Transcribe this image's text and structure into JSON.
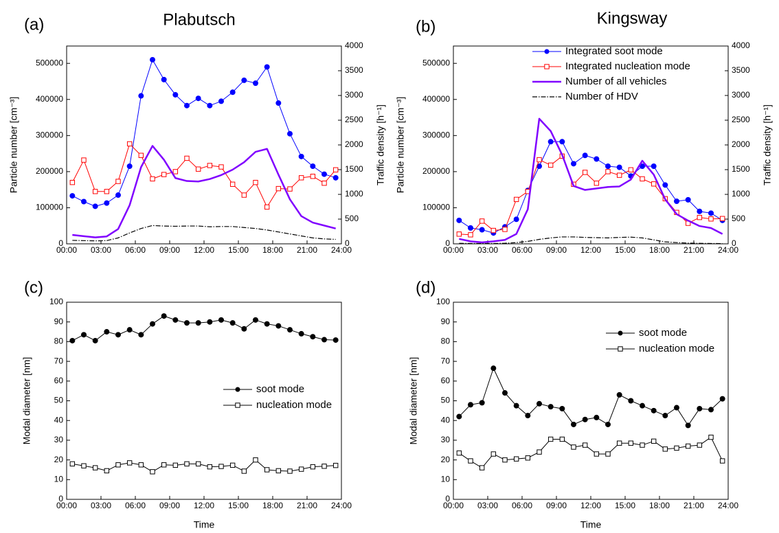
{
  "chart_data": [
    {
      "type": "line",
      "panel_label": "(a)",
      "title": "Plabutsch",
      "y_label": "Particle number [cm⁻³]",
      "y2_label": "Traffic density [h⁻¹]",
      "legend": "none",
      "x": [
        0.5,
        1.5,
        2.5,
        3.5,
        4.5,
        5.5,
        6.5,
        7.5,
        8.5,
        9.5,
        10.5,
        11.5,
        12.5,
        13.5,
        14.5,
        15.5,
        16.5,
        17.5,
        18.5,
        19.5,
        20.5,
        21.5,
        22.5,
        23.5
      ],
      "xlim": [
        0,
        24
      ],
      "xticks": [
        {
          "value": 0,
          "label": "00:00"
        },
        {
          "value": 3,
          "label": "03:00"
        },
        {
          "value": 6,
          "label": "06:00"
        },
        {
          "value": 9,
          "label": "09:00"
        },
        {
          "value": 12,
          "label": "12:00"
        },
        {
          "value": 15,
          "label": "15:00"
        },
        {
          "value": 18,
          "label": "18:00"
        },
        {
          "value": 21,
          "label": "21:00"
        },
        {
          "value": 24,
          "label": "24:00"
        }
      ],
      "ylim": [
        0,
        548000
      ],
      "yticks": [
        0,
        100000,
        200000,
        300000,
        400000,
        500000
      ],
      "y2lim": [
        0,
        4000
      ],
      "y2ticks": [
        0,
        500,
        1000,
        1500,
        2000,
        2500,
        3000,
        3500,
        4000
      ],
      "series": [
        {
          "name": "Integrated soot mode",
          "color": "#0000ff",
          "marker": "circle-filled",
          "linestyle": "solid",
          "linewidth": 1,
          "axis": "y",
          "values": [
            133000,
            117000,
            104000,
            113000,
            135000,
            215000,
            410000,
            510000,
            455000,
            413000,
            383000,
            403000,
            383000,
            395000,
            420000,
            453000,
            445000,
            490000,
            390000,
            305000,
            242000,
            215000,
            193000,
            183000
          ]
        },
        {
          "name": "Integrated nucleation mode",
          "color": "#ff0000",
          "marker": "square-open",
          "linestyle": "solid",
          "linewidth": 1,
          "axis": "y",
          "values": [
            170000,
            232000,
            145000,
            145000,
            173000,
            277000,
            245000,
            180000,
            192000,
            200000,
            237000,
            207000,
            217000,
            213000,
            165000,
            135000,
            170000,
            102000,
            153000,
            152000,
            183000,
            187000,
            168000,
            205000
          ]
        },
        {
          "name": "Number of all vehicles",
          "color": "#8000ff",
          "marker": "none",
          "linestyle": "solid",
          "linewidth": 2.5,
          "axis": "y2",
          "values": [
            180,
            155,
            130,
            150,
            300,
            780,
            1550,
            1980,
            1700,
            1330,
            1270,
            1260,
            1310,
            1390,
            1500,
            1650,
            1860,
            1920,
            1400,
            900,
            560,
            430,
            370,
            310
          ]
        },
        {
          "name": "Number of HDV",
          "color": "#000000",
          "marker": "none",
          "linestyle": "dashdot",
          "linewidth": 1.2,
          "axis": "y2",
          "values": [
            70,
            65,
            60,
            65,
            120,
            220,
            310,
            370,
            360,
            355,
            360,
            360,
            345,
            350,
            350,
            330,
            310,
            280,
            240,
            200,
            160,
            120,
            100,
            90
          ]
        }
      ]
    },
    {
      "type": "line",
      "panel_label": "(b)",
      "title": "Kingsway",
      "y_label": "Particle number [cm⁻³]",
      "y2_label": "Traffic density [h⁻¹]",
      "legend": "upper center",
      "x": [
        0.5,
        1.5,
        2.5,
        3.5,
        4.5,
        5.5,
        6.5,
        7.5,
        8.5,
        9.5,
        10.5,
        11.5,
        12.5,
        13.5,
        14.5,
        15.5,
        16.5,
        17.5,
        18.5,
        19.5,
        20.5,
        21.5,
        22.5,
        23.5
      ],
      "xlim": [
        0,
        24
      ],
      "xticks": [
        {
          "value": 0,
          "label": "00:00"
        },
        {
          "value": 3,
          "label": "03:00"
        },
        {
          "value": 6,
          "label": "06:00"
        },
        {
          "value": 9,
          "label": "09:00"
        },
        {
          "value": 12,
          "label": "12:00"
        },
        {
          "value": 15,
          "label": "15:00"
        },
        {
          "value": 18,
          "label": "18:00"
        },
        {
          "value": 21,
          "label": "21:00"
        },
        {
          "value": 24,
          "label": "24:00"
        }
      ],
      "ylim": [
        0,
        548000
      ],
      "yticks": [
        0,
        100000,
        200000,
        300000,
        400000,
        500000
      ],
      "y2lim": [
        0,
        4000
      ],
      "y2ticks": [
        0,
        500,
        1000,
        1500,
        2000,
        2500,
        3000,
        3500,
        4000
      ],
      "series": [
        {
          "name": "Integrated soot mode",
          "color": "#0000ff",
          "marker": "circle-filled",
          "linestyle": "solid",
          "linewidth": 1,
          "axis": "y",
          "values": [
            65000,
            44000,
            39000,
            30000,
            47000,
            68000,
            148000,
            215000,
            283000,
            283000,
            222000,
            245000,
            235000,
            215000,
            212000,
            188000,
            215000,
            215000,
            163000,
            118000,
            122000,
            90000,
            85000,
            65000
          ]
        },
        {
          "name": "Integrated nucleation mode",
          "color": "#ff0000",
          "marker": "square-open",
          "linestyle": "solid",
          "linewidth": 1,
          "axis": "y",
          "values": [
            27000,
            25000,
            63000,
            37000,
            40000,
            123000,
            145000,
            233000,
            218000,
            243000,
            165000,
            198000,
            168000,
            200000,
            190000,
            205000,
            180000,
            166000,
            125000,
            87000,
            57000,
            73000,
            69000,
            70000
          ]
        },
        {
          "name": "Number of all vehicles",
          "color": "#8000ff",
          "marker": "none",
          "linestyle": "solid",
          "linewidth": 2.5,
          "axis": "y2",
          "values": [
            100,
            50,
            30,
            50,
            80,
            200,
            700,
            2530,
            2280,
            1800,
            1170,
            1090,
            1120,
            1150,
            1160,
            1300,
            1680,
            1400,
            900,
            600,
            470,
            360,
            320,
            200
          ]
        },
        {
          "name": "Number of HDV",
          "color": "#000000",
          "marker": "none",
          "linestyle": "dashdot",
          "linewidth": 1.2,
          "axis": "y2",
          "values": [
            10,
            8,
            6,
            8,
            12,
            25,
            50,
            90,
            120,
            140,
            140,
            130,
            125,
            120,
            130,
            135,
            120,
            80,
            40,
            25,
            15,
            10,
            8,
            5
          ]
        }
      ]
    },
    {
      "type": "line",
      "panel_label": "(c)",
      "y_label": "Modal diameter [nm]",
      "x_label": "Time",
      "legend": "center right",
      "x": [
        0.5,
        1.5,
        2.5,
        3.5,
        4.5,
        5.5,
        6.5,
        7.5,
        8.5,
        9.5,
        10.5,
        11.5,
        12.5,
        13.5,
        14.5,
        15.5,
        16.5,
        17.5,
        18.5,
        19.5,
        20.5,
        21.5,
        22.5,
        23.5
      ],
      "xlim": [
        0,
        24
      ],
      "xticks": [
        {
          "value": 0,
          "label": "00:00"
        },
        {
          "value": 3,
          "label": "03:00"
        },
        {
          "value": 6,
          "label": "06:00"
        },
        {
          "value": 9,
          "label": "09:00"
        },
        {
          "value": 12,
          "label": "12:00"
        },
        {
          "value": 15,
          "label": "15:00"
        },
        {
          "value": 18,
          "label": "18:00"
        },
        {
          "value": 21,
          "label": "21:00"
        },
        {
          "value": 24,
          "label": "24:00"
        }
      ],
      "ylim": [
        0,
        100
      ],
      "yticks": [
        0,
        10,
        20,
        30,
        40,
        50,
        60,
        70,
        80,
        90,
        100
      ],
      "series": [
        {
          "name": "soot mode",
          "color": "#000000",
          "marker": "circle-filled",
          "linestyle": "solid",
          "linewidth": 1,
          "axis": "y",
          "values": [
            80.5,
            83.5,
            80.5,
            85,
            83.5,
            86,
            83.5,
            89,
            93,
            91,
            89.5,
            89.5,
            90,
            91,
            89.5,
            86.5,
            91,
            89,
            88,
            86,
            84,
            82.5,
            81,
            80.8
          ]
        },
        {
          "name": "nucleation mode",
          "color": "#000000",
          "marker": "square-open",
          "linestyle": "solid",
          "linewidth": 1,
          "axis": "y",
          "values": [
            18,
            17,
            16,
            14.5,
            17.5,
            18.5,
            17.5,
            14,
            17.5,
            17.3,
            18,
            18,
            16.5,
            16.7,
            17.3,
            14.3,
            20,
            15,
            14.5,
            14.3,
            15.3,
            16.5,
            16.8,
            17.2
          ]
        }
      ]
    },
    {
      "type": "line",
      "panel_label": "(d)",
      "y_label": "Modal diameter [nm]",
      "x_label": "Time",
      "legend": "upper right",
      "x": [
        0.5,
        1.5,
        2.5,
        3.5,
        4.5,
        5.5,
        6.5,
        7.5,
        8.5,
        9.5,
        10.5,
        11.5,
        12.5,
        13.5,
        14.5,
        15.5,
        16.5,
        17.5,
        18.5,
        19.5,
        20.5,
        21.5,
        22.5,
        23.5
      ],
      "xlim": [
        0,
        24
      ],
      "xticks": [
        {
          "value": 0,
          "label": "00:00"
        },
        {
          "value": 3,
          "label": "03:00"
        },
        {
          "value": 6,
          "label": "06:00"
        },
        {
          "value": 9,
          "label": "09:00"
        },
        {
          "value": 12,
          "label": "12:00"
        },
        {
          "value": 15,
          "label": "15:00"
        },
        {
          "value": 18,
          "label": "18:00"
        },
        {
          "value": 21,
          "label": "21:00"
        },
        {
          "value": 24,
          "label": "24:00"
        }
      ],
      "ylim": [
        0,
        100
      ],
      "yticks": [
        0,
        10,
        20,
        30,
        40,
        50,
        60,
        70,
        80,
        90,
        100
      ],
      "series": [
        {
          "name": "soot mode",
          "color": "#000000",
          "marker": "circle-filled",
          "linestyle": "solid",
          "linewidth": 1,
          "axis": "y",
          "values": [
            42,
            48,
            49,
            66.5,
            54,
            47.5,
            42.5,
            48.5,
            47,
            46,
            38,
            40.5,
            41.5,
            38,
            53,
            50,
            47.5,
            45,
            42.5,
            46.5,
            37.5,
            46,
            45.5,
            51
          ]
        },
        {
          "name": "nucleation mode",
          "color": "#000000",
          "marker": "square-open",
          "linestyle": "solid",
          "linewidth": 1,
          "axis": "y",
          "values": [
            23.5,
            19.5,
            16,
            23,
            20,
            20.5,
            21,
            24,
            30.5,
            30.5,
            26.5,
            27.5,
            23,
            23,
            28.5,
            28.5,
            27.5,
            29.5,
            25.5,
            26,
            27,
            27.5,
            31.5,
            19.5
          ]
        }
      ]
    }
  ]
}
